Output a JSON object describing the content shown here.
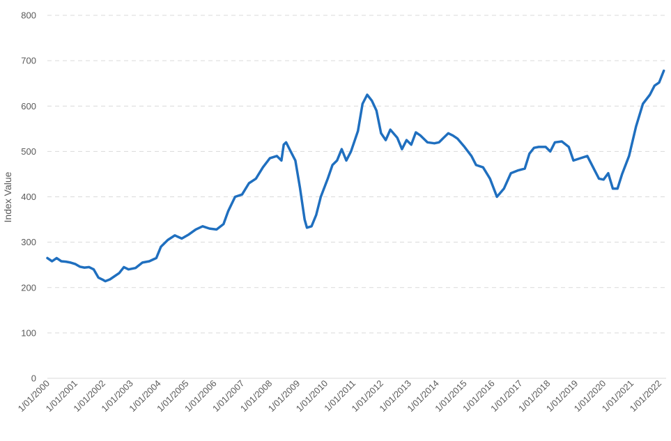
{
  "chart_data": {
    "type": "line",
    "title": "",
    "xlabel": "",
    "ylabel": "Index Value",
    "ylim": [
      0,
      800
    ],
    "yticks": [
      "0",
      "100",
      "200",
      "300",
      "400",
      "500",
      "600",
      "700",
      "800"
    ],
    "xlim": [
      "2000-01",
      "2022-04"
    ],
    "xticks": [
      {
        "date": "2000-01",
        "label": "1/01/2000"
      },
      {
        "date": "2001-01",
        "label": "1/01/2001"
      },
      {
        "date": "2002-01",
        "label": "1/01/2002"
      },
      {
        "date": "2003-01",
        "label": "1/01/2003"
      },
      {
        "date": "2004-01",
        "label": "1/01/2004"
      },
      {
        "date": "2005-01",
        "label": "1/01/2005"
      },
      {
        "date": "2006-01",
        "label": "1/01/2006"
      },
      {
        "date": "2007-01",
        "label": "1/01/2007"
      },
      {
        "date": "2008-01",
        "label": "1/01/2008"
      },
      {
        "date": "2009-01",
        "label": "1/01/2009"
      },
      {
        "date": "2010-01",
        "label": "1/01/2010"
      },
      {
        "date": "2011-01",
        "label": "1/01/2011"
      },
      {
        "date": "2012-01",
        "label": "1/01/2012"
      },
      {
        "date": "2013-01",
        "label": "1/01/2013"
      },
      {
        "date": "2014-01",
        "label": "1/01/2014"
      },
      {
        "date": "2015-01",
        "label": "1/01/2015"
      },
      {
        "date": "2016-01",
        "label": "1/01/2016"
      },
      {
        "date": "2017-01",
        "label": "1/01/2017"
      },
      {
        "date": "2018-01",
        "label": "1/01/2018"
      },
      {
        "date": "2019-01",
        "label": "1/01/2019"
      },
      {
        "date": "2020-01",
        "label": "1/01/2020"
      },
      {
        "date": "2021-01",
        "label": "1/01/2021"
      },
      {
        "date": "2022-01",
        "label": "1/01/2022"
      }
    ],
    "grid": true,
    "legend": "none",
    "series": [
      {
        "color": "#1f6fbf",
        "points": [
          [
            "2000-01",
            265
          ],
          [
            "2000-03",
            258
          ],
          [
            "2000-05",
            265
          ],
          [
            "2000-07",
            258
          ],
          [
            "2000-09",
            257
          ],
          [
            "2000-11",
            255
          ],
          [
            "2001-01",
            252
          ],
          [
            "2001-03",
            246
          ],
          [
            "2001-05",
            244
          ],
          [
            "2001-07",
            245
          ],
          [
            "2001-09",
            240
          ],
          [
            "2001-11",
            222
          ],
          [
            "2002-01",
            217
          ],
          [
            "2002-02",
            214
          ],
          [
            "2002-04",
            218
          ],
          [
            "2002-06",
            225
          ],
          [
            "2002-08",
            232
          ],
          [
            "2002-10",
            245
          ],
          [
            "2002-12",
            240
          ],
          [
            "2003-03",
            243
          ],
          [
            "2003-06",
            255
          ],
          [
            "2003-09",
            258
          ],
          [
            "2003-12",
            265
          ],
          [
            "2004-02",
            290
          ],
          [
            "2004-05",
            305
          ],
          [
            "2004-08",
            315
          ],
          [
            "2004-11",
            308
          ],
          [
            "2005-02",
            317
          ],
          [
            "2005-05",
            328
          ],
          [
            "2005-08",
            335
          ],
          [
            "2005-11",
            330
          ],
          [
            "2006-02",
            328
          ],
          [
            "2006-05",
            340
          ],
          [
            "2006-07",
            368
          ],
          [
            "2006-10",
            400
          ],
          [
            "2007-01",
            405
          ],
          [
            "2007-04",
            430
          ],
          [
            "2007-07",
            440
          ],
          [
            "2007-10",
            465
          ],
          [
            "2008-01",
            485
          ],
          [
            "2008-04",
            490
          ],
          [
            "2008-06",
            480
          ],
          [
            "2008-07",
            515
          ],
          [
            "2008-08",
            520
          ],
          [
            "2008-10",
            500
          ],
          [
            "2008-12",
            480
          ],
          [
            "2009-02",
            420
          ],
          [
            "2009-04",
            350
          ],
          [
            "2009-05",
            332
          ],
          [
            "2009-07",
            335
          ],
          [
            "2009-09",
            360
          ],
          [
            "2009-11",
            400
          ],
          [
            "2010-02",
            440
          ],
          [
            "2010-04",
            470
          ],
          [
            "2010-06",
            480
          ],
          [
            "2010-08",
            505
          ],
          [
            "2010-10",
            480
          ],
          [
            "2010-12",
            500
          ],
          [
            "2011-03",
            545
          ],
          [
            "2011-05",
            605
          ],
          [
            "2011-07",
            625
          ],
          [
            "2011-09",
            612
          ],
          [
            "2011-11",
            590
          ],
          [
            "2012-01",
            540
          ],
          [
            "2012-03",
            525
          ],
          [
            "2012-05",
            548
          ],
          [
            "2012-08",
            530
          ],
          [
            "2012-10",
            505
          ],
          [
            "2012-12",
            525
          ],
          [
            "2013-02",
            515
          ],
          [
            "2013-04",
            542
          ],
          [
            "2013-06",
            535
          ],
          [
            "2013-09",
            520
          ],
          [
            "2013-12",
            518
          ],
          [
            "2014-02",
            520
          ],
          [
            "2014-04",
            530
          ],
          [
            "2014-06",
            540
          ],
          [
            "2014-08",
            535
          ],
          [
            "2014-10",
            528
          ],
          [
            "2015-01",
            510
          ],
          [
            "2015-04",
            490
          ],
          [
            "2015-06",
            470
          ],
          [
            "2015-09",
            465
          ],
          [
            "2015-12",
            440
          ],
          [
            "2016-03",
            400
          ],
          [
            "2016-06",
            418
          ],
          [
            "2016-09",
            452
          ],
          [
            "2016-12",
            458
          ],
          [
            "2017-03",
            462
          ],
          [
            "2017-05",
            495
          ],
          [
            "2017-07",
            508
          ],
          [
            "2017-09",
            510
          ],
          [
            "2017-12",
            510
          ],
          [
            "2018-02",
            500
          ],
          [
            "2018-04",
            520
          ],
          [
            "2018-07",
            522
          ],
          [
            "2018-10",
            510
          ],
          [
            "2018-12",
            480
          ],
          [
            "2019-03",
            485
          ],
          [
            "2019-06",
            490
          ],
          [
            "2019-09",
            460
          ],
          [
            "2019-11",
            440
          ],
          [
            "2020-01",
            438
          ],
          [
            "2020-03",
            452
          ],
          [
            "2020-05",
            418
          ],
          [
            "2020-07",
            418
          ],
          [
            "2020-09",
            450
          ],
          [
            "2020-12",
            490
          ],
          [
            "2021-03",
            555
          ],
          [
            "2021-06",
            605
          ],
          [
            "2021-09",
            625
          ],
          [
            "2021-11",
            645
          ],
          [
            "2022-01",
            652
          ],
          [
            "2022-03",
            678
          ]
        ]
      }
    ]
  }
}
